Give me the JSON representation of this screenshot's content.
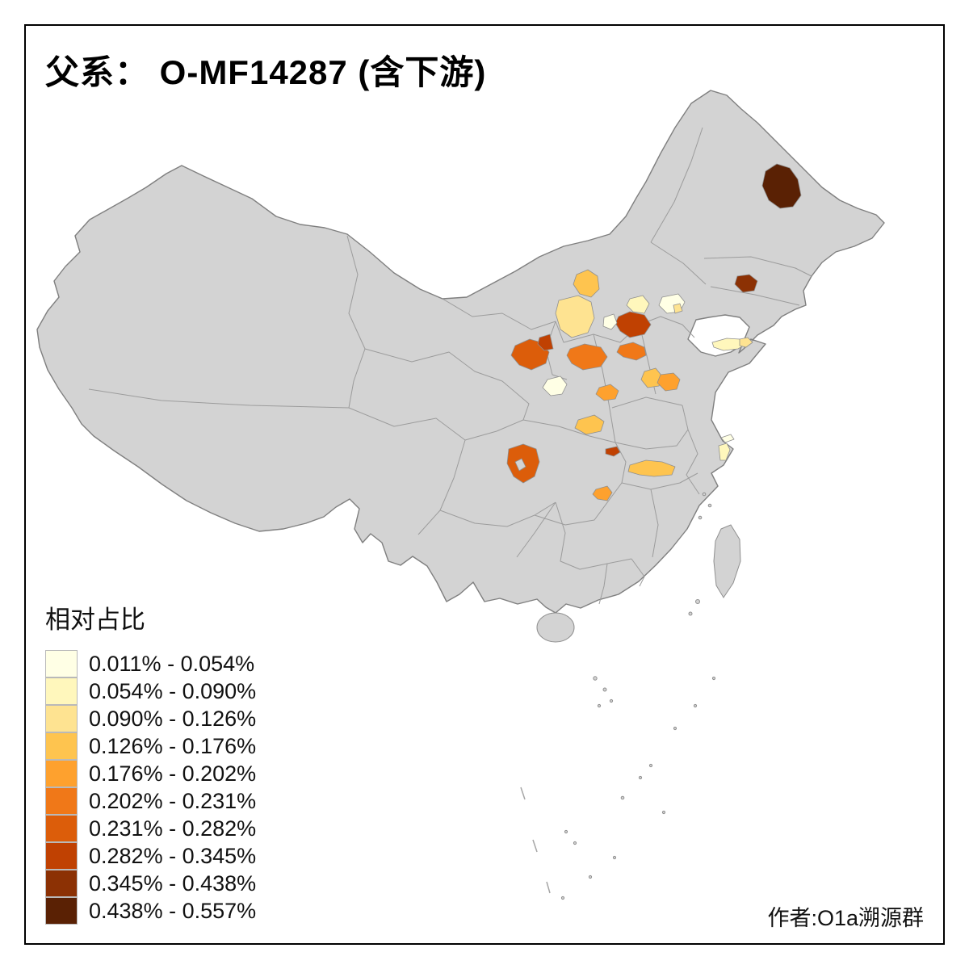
{
  "title": "父系： O-MF14287 (含下游)",
  "attribution": "作者:O1a溯源群",
  "legend": {
    "title": "相对占比",
    "entries": [
      {
        "label": "0.011% - 0.054%",
        "color": "#FFFFE5"
      },
      {
        "label": "0.054% - 0.090%",
        "color": "#FFF7BC"
      },
      {
        "label": "0.090% - 0.126%",
        "color": "#FEE391"
      },
      {
        "label": "0.126% - 0.176%",
        "color": "#FEC44F"
      },
      {
        "label": "0.176% - 0.202%",
        "color": "#FEA12E"
      },
      {
        "label": "0.202% - 0.231%",
        "color": "#F07818"
      },
      {
        "label": "0.231% - 0.282%",
        "color": "#DC5D0A"
      },
      {
        "label": "0.282% - 0.345%",
        "color": "#C04102"
      },
      {
        "label": "0.345% - 0.438%",
        "color": "#8C3104"
      },
      {
        "label": "0.438% - 0.557%",
        "color": "#5A2104"
      }
    ]
  },
  "map": {
    "base_fill": "#D3D3D3",
    "background": "#FFFFFF",
    "regions": [
      {
        "name": "heilongjiang-suihua",
        "class": 9
      },
      {
        "name": "liaoning-shenyang",
        "class": 8
      },
      {
        "name": "hebei-shijiazhuang",
        "class": 7
      },
      {
        "name": "gansu-lanzhou",
        "class": 6
      },
      {
        "name": "gansu-baiyin",
        "class": 7
      },
      {
        "name": "shaanxi-yulin",
        "class": 5
      },
      {
        "name": "shanxi-xinzhou",
        "class": 5
      },
      {
        "name": "neimenggu-bayannur",
        "class": 3
      },
      {
        "name": "neimenggu-ordos",
        "class": 2
      },
      {
        "name": "hebei-north-pale",
        "class": 1
      },
      {
        "name": "beijing-pale",
        "class": 0
      },
      {
        "name": "beijing-spot",
        "class": 2
      },
      {
        "name": "shandong-yantai",
        "class": 1
      },
      {
        "name": "shandong-weihai",
        "class": 2
      },
      {
        "name": "shanxi-changzhi",
        "class": 3
      },
      {
        "name": "henan-anyang",
        "class": 4
      },
      {
        "name": "shaanxi-weinan",
        "class": 4
      },
      {
        "name": "gansu-pingliang",
        "class": 0
      },
      {
        "name": "shaanxi-hanzhong",
        "class": 3
      },
      {
        "name": "chongqing-north",
        "class": 7
      },
      {
        "name": "sichuan-chengdu",
        "class": 6
      },
      {
        "name": "hubei-yichang",
        "class": 3
      },
      {
        "name": "guizhou-zunyi",
        "class": 4
      },
      {
        "name": "shanghai-coast",
        "class": 1
      },
      {
        "name": "shanghai-chongming",
        "class": 0
      },
      {
        "name": "shaanxi-north-pale",
        "class": 0
      }
    ]
  }
}
